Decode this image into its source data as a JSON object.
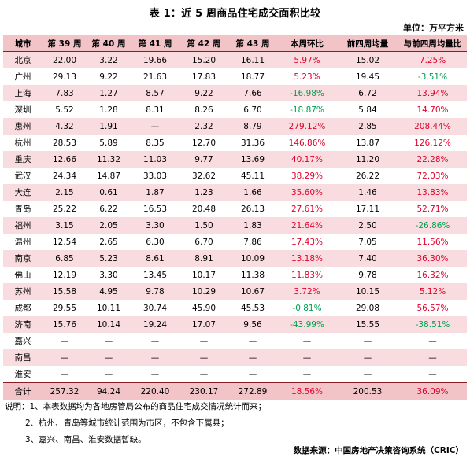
{
  "title": "表 1：近 5 周商品住宅成交面积比较",
  "unit": "单位：万平方米",
  "columns": [
    "城市",
    "第 39 周",
    "第 40 周",
    "第 41 周",
    "第 42 周",
    "第 43 周",
    "本周环比",
    "前四周均量",
    "与前四周均量比"
  ],
  "colors": {
    "header_bg": "#f2c3c7",
    "row_pink": "#f9dcdf",
    "positive": "#e0002a",
    "negative": "#00a050",
    "rule": "#8c1c24"
  },
  "rows": [
    {
      "city": "北京",
      "w39": "22.00",
      "w40": "3.22",
      "w41": "19.66",
      "w42": "15.20",
      "w43": "16.11",
      "wow": "5.97%",
      "avg4": "15.02",
      "vs_avg": "7.25%"
    },
    {
      "city": "广州",
      "w39": "29.13",
      "w40": "9.22",
      "w41": "21.63",
      "w42": "17.83",
      "w43": "18.77",
      "wow": "5.23%",
      "avg4": "19.45",
      "vs_avg": "-3.51%"
    },
    {
      "city": "上海",
      "w39": "7.83",
      "w40": "1.27",
      "w41": "8.57",
      "w42": "9.22",
      "w43": "7.66",
      "wow": "-16.98%",
      "avg4": "6.72",
      "vs_avg": "13.94%"
    },
    {
      "city": "深圳",
      "w39": "5.52",
      "w40": "1.28",
      "w41": "8.31",
      "w42": "8.26",
      "w43": "6.70",
      "wow": "-18.87%",
      "avg4": "5.84",
      "vs_avg": "14.70%"
    },
    {
      "city": "惠州",
      "w39": "4.32",
      "w40": "1.91",
      "w41": "—",
      "w42": "2.32",
      "w43": "8.79",
      "wow": "279.12%",
      "avg4": "2.85",
      "vs_avg": "208.44%"
    },
    {
      "city": "杭州",
      "w39": "28.53",
      "w40": "5.89",
      "w41": "8.35",
      "w42": "12.70",
      "w43": "31.36",
      "wow": "146.86%",
      "avg4": "13.87",
      "vs_avg": "126.12%"
    },
    {
      "city": "重庆",
      "w39": "12.66",
      "w40": "11.32",
      "w41": "11.03",
      "w42": "9.77",
      "w43": "13.69",
      "wow": "40.17%",
      "avg4": "11.20",
      "vs_avg": "22.28%"
    },
    {
      "city": "武汉",
      "w39": "24.34",
      "w40": "14.87",
      "w41": "33.03",
      "w42": "32.62",
      "w43": "45.11",
      "wow": "38.29%",
      "avg4": "26.22",
      "vs_avg": "72.03%"
    },
    {
      "city": "大连",
      "w39": "2.15",
      "w40": "0.61",
      "w41": "1.87",
      "w42": "1.23",
      "w43": "1.66",
      "wow": "35.60%",
      "avg4": "1.46",
      "vs_avg": "13.83%"
    },
    {
      "city": "青岛",
      "w39": "25.22",
      "w40": "6.22",
      "w41": "16.53",
      "w42": "20.48",
      "w43": "26.13",
      "wow": "27.61%",
      "avg4": "17.11",
      "vs_avg": "52.71%"
    },
    {
      "city": "福州",
      "w39": "3.15",
      "w40": "2.05",
      "w41": "3.30",
      "w42": "1.50",
      "w43": "1.83",
      "wow": "21.64%",
      "avg4": "2.50",
      "vs_avg": "-26.86%"
    },
    {
      "city": "温州",
      "w39": "12.54",
      "w40": "2.65",
      "w41": "6.30",
      "w42": "6.70",
      "w43": "7.86",
      "wow": "17.43%",
      "avg4": "7.05",
      "vs_avg": "11.56%"
    },
    {
      "city": "南京",
      "w39": "6.85",
      "w40": "5.23",
      "w41": "8.61",
      "w42": "8.91",
      "w43": "10.09",
      "wow": "13.18%",
      "avg4": "7.40",
      "vs_avg": "36.30%"
    },
    {
      "city": "佛山",
      "w39": "12.19",
      "w40": "3.30",
      "w41": "13.45",
      "w42": "10.17",
      "w43": "11.38",
      "wow": "11.83%",
      "avg4": "9.78",
      "vs_avg": "16.32%"
    },
    {
      "city": "苏州",
      "w39": "15.58",
      "w40": "4.95",
      "w41": "9.78",
      "w42": "10.29",
      "w43": "10.67",
      "wow": "3.72%",
      "avg4": "10.15",
      "vs_avg": "5.12%"
    },
    {
      "city": "成都",
      "w39": "29.55",
      "w40": "10.11",
      "w41": "30.74",
      "w42": "45.90",
      "w43": "45.53",
      "wow": "-0.81%",
      "avg4": "29.08",
      "vs_avg": "56.57%"
    },
    {
      "city": "济南",
      "w39": "15.76",
      "w40": "10.14",
      "w41": "19.24",
      "w42": "17.07",
      "w43": "9.56",
      "wow": "-43.99%",
      "avg4": "15.55",
      "vs_avg": "-38.51%"
    },
    {
      "city": "嘉兴",
      "w39": "—",
      "w40": "—",
      "w41": "—",
      "w42": "—",
      "w43": "—",
      "wow": "—",
      "avg4": "—",
      "vs_avg": "—"
    },
    {
      "city": "南昌",
      "w39": "—",
      "w40": "—",
      "w41": "—",
      "w42": "—",
      "w43": "—",
      "wow": "—",
      "avg4": "—",
      "vs_avg": "—"
    },
    {
      "city": "淮安",
      "w39": "—",
      "w40": "—",
      "w41": "—",
      "w42": "—",
      "w43": "—",
      "wow": "—",
      "avg4": "—",
      "vs_avg": "—"
    }
  ],
  "total": {
    "city": "合计",
    "w39": "257.32",
    "w40": "94.24",
    "w41": "220.40",
    "w42": "230.17",
    "w43": "272.89",
    "wow": "18.56%",
    "avg4": "200.53",
    "vs_avg": "36.09%"
  },
  "notes": [
    "说明：1、本表数据均为各地房管局公布的商品住宅成交情况统计而来；",
    "2、杭州、青岛等城市统计范围为市区，不包含下属县；",
    "3、嘉兴、南昌、淮安数据暂缺。"
  ],
  "source": "数据来源：中国房地产决策咨询系统（CRIC）"
}
